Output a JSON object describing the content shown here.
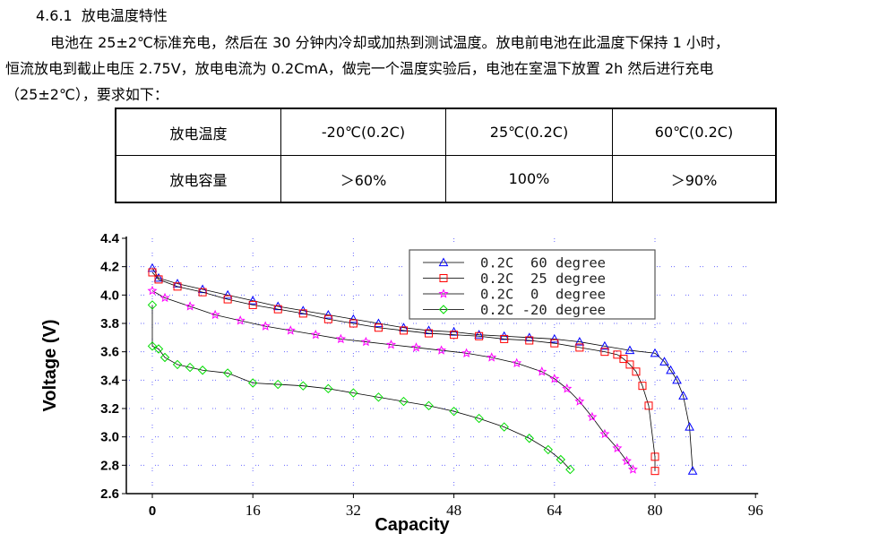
{
  "section": {
    "number": "4.6.1",
    "title": "放电温度特性"
  },
  "paragraph": [
    "电池在 25±2℃标准充电，然后在 30 分钟内冷却或加热到测试温度。放电前电池在此温度下保持 1 小时，",
    "恒流放电到截止电压 2.75V，放电电流为 0.2CmA，做完一个温度实验后，电池在室温下放置 2h 然后进行充电",
    "（25±2℃），要求如下："
  ],
  "table": {
    "rows": [
      [
        "放电温度",
        "-20℃(0.2C)",
        "25℃(0.2C)",
        "60℃(0.2C)"
      ],
      [
        "放电容量",
        "＞60%",
        "100%",
        "＞90%"
      ]
    ]
  },
  "chart_data": {
    "type": "scatter",
    "xlabel": "Capacity",
    "ylabel": "Voltage (V)",
    "xlim": [
      0,
      96
    ],
    "ylim": [
      2.6,
      4.4
    ],
    "xticks": [
      "0",
      "16",
      "32",
      "48",
      "64",
      "80",
      "96"
    ],
    "yticks": [
      "2.6",
      "2.8",
      "3.0",
      "3.2",
      "3.4",
      "3.6",
      "3.8",
      "4.0",
      "4.2",
      "4.4"
    ],
    "grid": true,
    "legend_position": "top-right",
    "series": [
      {
        "name": "0.2C  60 degree",
        "color": "#0000ff",
        "marker": "triangle",
        "points": [
          [
            0,
            4.19
          ],
          [
            1,
            4.12
          ],
          [
            4,
            4.08
          ],
          [
            8,
            4.04
          ],
          [
            12,
            4.0
          ],
          [
            16,
            3.96
          ],
          [
            20,
            3.92
          ],
          [
            24,
            3.89
          ],
          [
            28,
            3.86
          ],
          [
            32,
            3.83
          ],
          [
            36,
            3.8
          ],
          [
            40,
            3.77
          ],
          [
            44,
            3.75
          ],
          [
            48,
            3.74
          ],
          [
            52,
            3.72
          ],
          [
            56,
            3.71
          ],
          [
            60,
            3.7
          ],
          [
            64,
            3.69
          ],
          [
            68,
            3.67
          ],
          [
            72,
            3.64
          ],
          [
            76,
            3.61
          ],
          [
            80,
            3.59
          ],
          [
            81.5,
            3.53
          ],
          [
            82.5,
            3.47
          ],
          [
            83.5,
            3.4
          ],
          [
            84.5,
            3.29
          ],
          [
            85.5,
            3.07
          ],
          [
            86,
            2.76
          ]
        ]
      },
      {
        "name": "0.2C  25 degree",
        "color": "#ff0000",
        "marker": "square",
        "points": [
          [
            0,
            4.16
          ],
          [
            1,
            4.11
          ],
          [
            4,
            4.06
          ],
          [
            8,
            4.02
          ],
          [
            12,
            3.97
          ],
          [
            16,
            3.93
          ],
          [
            20,
            3.9
          ],
          [
            24,
            3.87
          ],
          [
            28,
            3.83
          ],
          [
            32,
            3.8
          ],
          [
            36,
            3.77
          ],
          [
            40,
            3.75
          ],
          [
            44,
            3.73
          ],
          [
            48,
            3.72
          ],
          [
            52,
            3.71
          ],
          [
            56,
            3.69
          ],
          [
            60,
            3.68
          ],
          [
            64,
            3.66
          ],
          [
            68,
            3.63
          ],
          [
            72,
            3.6
          ],
          [
            74,
            3.58
          ],
          [
            75,
            3.55
          ],
          [
            76,
            3.51
          ],
          [
            77,
            3.46
          ],
          [
            78,
            3.36
          ],
          [
            79,
            3.22
          ],
          [
            80,
            2.86
          ],
          [
            80,
            2.76
          ]
        ]
      },
      {
        "name": "0.2C  0  degree",
        "color": "#ff00ff",
        "marker": "star",
        "points": [
          [
            0,
            4.03
          ],
          [
            2,
            3.98
          ],
          [
            6,
            3.92
          ],
          [
            10,
            3.86
          ],
          [
            14,
            3.82
          ],
          [
            18,
            3.78
          ],
          [
            22,
            3.75
          ],
          [
            26,
            3.72
          ],
          [
            30,
            3.69
          ],
          [
            34,
            3.67
          ],
          [
            38,
            3.65
          ],
          [
            42,
            3.63
          ],
          [
            46,
            3.61
          ],
          [
            50,
            3.59
          ],
          [
            54,
            3.56
          ],
          [
            58,
            3.52
          ],
          [
            62,
            3.46
          ],
          [
            64,
            3.41
          ],
          [
            66,
            3.34
          ],
          [
            68,
            3.25
          ],
          [
            70,
            3.14
          ],
          [
            72,
            3.02
          ],
          [
            74,
            2.92
          ],
          [
            75.5,
            2.83
          ],
          [
            76.5,
            2.77
          ]
        ]
      },
      {
        "name": "0.2C -20 degree",
        "color": "#00dd00",
        "marker": "diamond",
        "points": [
          [
            0,
            3.93
          ],
          [
            0,
            3.64
          ],
          [
            1,
            3.62
          ],
          [
            2,
            3.56
          ],
          [
            4,
            3.51
          ],
          [
            6,
            3.49
          ],
          [
            8,
            3.47
          ],
          [
            12,
            3.45
          ],
          [
            16,
            3.38
          ],
          [
            20,
            3.37
          ],
          [
            24,
            3.36
          ],
          [
            28,
            3.34
          ],
          [
            32,
            3.31
          ],
          [
            36,
            3.28
          ],
          [
            40,
            3.25
          ],
          [
            44,
            3.22
          ],
          [
            48,
            3.18
          ],
          [
            52,
            3.13
          ],
          [
            56,
            3.07
          ],
          [
            60,
            2.99
          ],
          [
            63,
            2.91
          ],
          [
            65,
            2.84
          ],
          [
            66.5,
            2.77
          ]
        ]
      }
    ]
  }
}
